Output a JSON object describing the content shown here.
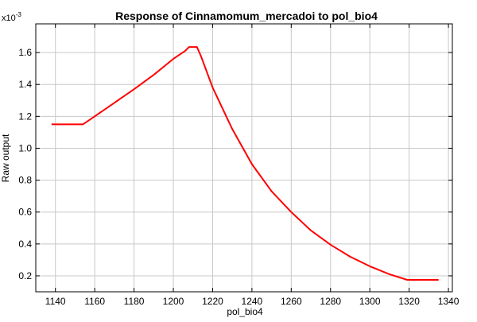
{
  "chart_data": {
    "type": "line",
    "title": "Response of Cinnamomum_mercadoi to pol_bio4",
    "xlabel": "pol_bio4",
    "ylabel": "Raw output",
    "y_multiplier_base": "x10",
    "y_multiplier_exponent": "-3",
    "xlim": [
      1130,
      1342
    ],
    "ylim": [
      0.1,
      1.78
    ],
    "xticks": [
      1140,
      1160,
      1180,
      1200,
      1220,
      1240,
      1260,
      1280,
      1300,
      1320,
      1340
    ],
    "yticks": [
      0.2,
      0.4,
      0.6,
      0.8,
      1.0,
      1.2,
      1.4,
      1.6
    ],
    "ytick_labels": [
      "0.2",
      "0.4",
      "0.6",
      "0.8",
      "1.0",
      "1.2",
      "1.4",
      "1.6"
    ],
    "grid": true,
    "line_color": "#ff0000",
    "series": [
      {
        "x": [
          1138,
          1154,
          1160,
          1170,
          1180,
          1190,
          1200,
          1206,
          1208,
          1212,
          1214,
          1220,
          1230,
          1240,
          1250,
          1260,
          1270,
          1280,
          1290,
          1300,
          1310,
          1319,
          1335
        ],
        "y": [
          1.15,
          1.15,
          1.2,
          1.285,
          1.37,
          1.46,
          1.56,
          1.61,
          1.635,
          1.635,
          1.58,
          1.38,
          1.12,
          0.9,
          0.73,
          0.6,
          0.485,
          0.395,
          0.32,
          0.26,
          0.21,
          0.175,
          0.175
        ]
      }
    ]
  }
}
